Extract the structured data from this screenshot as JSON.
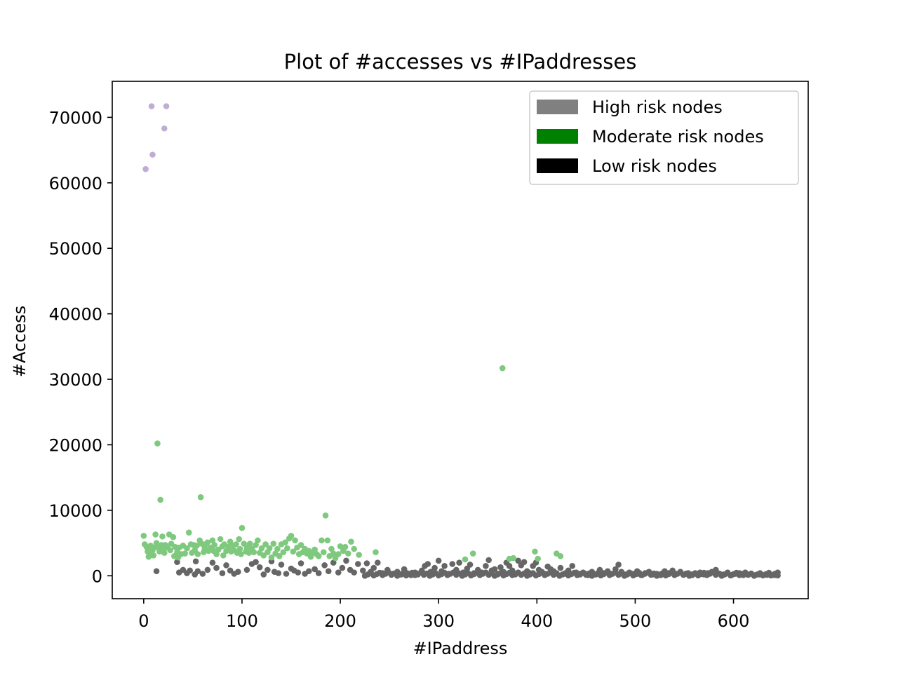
{
  "chart_data": {
    "type": "scatter",
    "title": "Plot of #accesses vs #IPaddresses",
    "xlabel": "#IPaddress",
    "ylabel": "#Access",
    "xlim": [
      -32,
      676
    ],
    "ylim": [
      -3500,
      75500
    ],
    "xticks": [
      0,
      100,
      200,
      300,
      400,
      500,
      600
    ],
    "yticks": [
      0,
      10000,
      20000,
      30000,
      40000,
      50000,
      60000,
      70000
    ],
    "grid": false,
    "legend": {
      "placement": "top-right",
      "entries": [
        {
          "label": "High risk nodes",
          "color": "#808080"
        },
        {
          "label": "Moderate risk nodes",
          "color": "#008000"
        },
        {
          "label": "Low risk nodes",
          "color": "#000000"
        }
      ]
    },
    "series": [
      {
        "color": "#beaed4",
        "points": [
          [
            2,
            62100
          ],
          [
            8,
            71700
          ],
          [
            9,
            64300
          ],
          [
            21,
            68300
          ],
          [
            23,
            71700
          ]
        ]
      },
      {
        "color": "#7fc97f",
        "points": [
          [
            0,
            6100
          ],
          [
            1,
            4800
          ],
          [
            3,
            4400
          ],
          [
            4,
            3700
          ],
          [
            5,
            2900
          ],
          [
            6,
            4100
          ],
          [
            7,
            4600
          ],
          [
            8,
            3200
          ],
          [
            9,
            3900
          ],
          [
            10,
            3100
          ],
          [
            11,
            4300
          ],
          [
            12,
            6300
          ],
          [
            13,
            5000
          ],
          [
            14,
            20200
          ],
          [
            15,
            4400
          ],
          [
            16,
            3700
          ],
          [
            17,
            11600
          ],
          [
            18,
            4700
          ],
          [
            19,
            6000
          ],
          [
            20,
            4100
          ],
          [
            21,
            3500
          ],
          [
            22,
            4700
          ],
          [
            24,
            4300
          ],
          [
            26,
            6300
          ],
          [
            27,
            3900
          ],
          [
            28,
            4900
          ],
          [
            30,
            5900
          ],
          [
            31,
            3000
          ],
          [
            32,
            4400
          ],
          [
            34,
            3600
          ],
          [
            35,
            2800
          ],
          [
            36,
            4300
          ],
          [
            38,
            3300
          ],
          [
            40,
            4600
          ],
          [
            42,
            3400
          ],
          [
            44,
            4200
          ],
          [
            46,
            6600
          ],
          [
            48,
            4800
          ],
          [
            49,
            3500
          ],
          [
            51,
            4700
          ],
          [
            52,
            3900
          ],
          [
            54,
            4600
          ],
          [
            55,
            3300
          ],
          [
            57,
            5400
          ],
          [
            58,
            12000
          ],
          [
            59,
            4900
          ],
          [
            61,
            3600
          ],
          [
            62,
            4200
          ],
          [
            63,
            4800
          ],
          [
            65,
            5100
          ],
          [
            66,
            3800
          ],
          [
            68,
            4300
          ],
          [
            70,
            5400
          ],
          [
            71,
            3800
          ],
          [
            72,
            4700
          ],
          [
            74,
            3300
          ],
          [
            76,
            4000
          ],
          [
            78,
            5600
          ],
          [
            80,
            4500
          ],
          [
            81,
            3100
          ],
          [
            82,
            4800
          ],
          [
            84,
            3800
          ],
          [
            86,
            4400
          ],
          [
            88,
            5200
          ],
          [
            89,
            3700
          ],
          [
            90,
            4600
          ],
          [
            92,
            3900
          ],
          [
            94,
            4800
          ],
          [
            95,
            3500
          ],
          [
            97,
            5600
          ],
          [
            98,
            4100
          ],
          [
            99,
            3300
          ],
          [
            100,
            7300
          ],
          [
            102,
            4900
          ],
          [
            104,
            3700
          ],
          [
            105,
            4300
          ],
          [
            107,
            3500
          ],
          [
            108,
            4900
          ],
          [
            110,
            4100
          ],
          [
            112,
            3600
          ],
          [
            114,
            4700
          ],
          [
            116,
            5400
          ],
          [
            118,
            3500
          ],
          [
            120,
            4200
          ],
          [
            122,
            3100
          ],
          [
            124,
            4800
          ],
          [
            126,
            3600
          ],
          [
            128,
            4200
          ],
          [
            130,
            2800
          ],
          [
            132,
            4900
          ],
          [
            134,
            3400
          ],
          [
            136,
            4100
          ],
          [
            138,
            3000
          ],
          [
            140,
            4800
          ],
          [
            142,
            3600
          ],
          [
            144,
            5100
          ],
          [
            146,
            4200
          ],
          [
            148,
            5700
          ],
          [
            150,
            6100
          ],
          [
            152,
            3700
          ],
          [
            154,
            5400
          ],
          [
            156,
            4300
          ],
          [
            158,
            3300
          ],
          [
            160,
            4700
          ],
          [
            162,
            3600
          ],
          [
            164,
            4100
          ],
          [
            166,
            3400
          ],
          [
            168,
            3800
          ],
          [
            170,
            2900
          ],
          [
            172,
            3500
          ],
          [
            174,
            4000
          ],
          [
            176,
            3300
          ],
          [
            178,
            3000
          ],
          [
            181,
            5400
          ],
          [
            183,
            3600
          ],
          [
            185,
            9200
          ],
          [
            187,
            5400
          ],
          [
            189,
            3000
          ],
          [
            191,
            4100
          ],
          [
            193,
            3400
          ],
          [
            195,
            2700
          ],
          [
            198,
            3300
          ],
          [
            200,
            4500
          ],
          [
            203,
            3800
          ],
          [
            205,
            4400
          ],
          [
            208,
            3400
          ],
          [
            211,
            5200
          ],
          [
            214,
            4100
          ],
          [
            219,
            3200
          ],
          [
            236,
            3600
          ],
          [
            327,
            2500
          ],
          [
            335,
            3400
          ],
          [
            365,
            31700
          ],
          [
            372,
            2600
          ],
          [
            376,
            2700
          ],
          [
            398,
            3700
          ],
          [
            401,
            2600
          ],
          [
            420,
            3400
          ],
          [
            424,
            3000
          ]
        ]
      },
      {
        "color": "#666666",
        "points": [
          [
            13,
            700
          ],
          [
            34,
            2100
          ],
          [
            36,
            500
          ],
          [
            40,
            900
          ],
          [
            44,
            400
          ],
          [
            47,
            800
          ],
          [
            52,
            200
          ],
          [
            53,
            2200
          ],
          [
            55,
            700
          ],
          [
            60,
            300
          ],
          [
            65,
            900
          ],
          [
            70,
            2000
          ],
          [
            74,
            1200
          ],
          [
            80,
            400
          ],
          [
            84,
            1600
          ],
          [
            88,
            800
          ],
          [
            92,
            300
          ],
          [
            96,
            600
          ],
          [
            105,
            900
          ],
          [
            110,
            1800
          ],
          [
            114,
            2100
          ],
          [
            118,
            1300
          ],
          [
            122,
            200
          ],
          [
            126,
            900
          ],
          [
            130,
            2200
          ],
          [
            133,
            600
          ],
          [
            137,
            400
          ],
          [
            140,
            1700
          ],
          [
            145,
            300
          ],
          [
            150,
            1100
          ],
          [
            153,
            800
          ],
          [
            157,
            500
          ],
          [
            160,
            1900
          ],
          [
            164,
            300
          ],
          [
            168,
            700
          ],
          [
            174,
            1000
          ],
          [
            178,
            400
          ],
          [
            184,
            1600
          ],
          [
            188,
            700
          ],
          [
            193,
            2000
          ],
          [
            198,
            500
          ],
          [
            202,
            1200
          ],
          [
            206,
            2300
          ],
          [
            210,
            900
          ],
          [
            214,
            500
          ],
          [
            218,
            1800
          ],
          [
            223,
            800
          ],
          [
            227,
            1900
          ],
          [
            231,
            600
          ],
          [
            234,
            1200
          ],
          [
            238,
            2000
          ],
          [
            243,
            400
          ],
          [
            248,
            900
          ],
          [
            253,
            300
          ],
          [
            258,
            600
          ],
          [
            262,
            200
          ],
          [
            265,
            1000
          ],
          [
            268,
            400
          ],
          [
            272,
            100
          ],
          [
            276,
            500
          ],
          [
            279,
            200
          ],
          [
            283,
            800
          ],
          [
            286,
            1500
          ],
          [
            289,
            1800
          ],
          [
            292,
            600
          ],
          [
            296,
            1200
          ],
          [
            300,
            2300
          ],
          [
            303,
            700
          ],
          [
            306,
            1500
          ],
          [
            310,
            300
          ],
          [
            314,
            1800
          ],
          [
            318,
            900
          ],
          [
            321,
            2000
          ],
          [
            325,
            500
          ],
          [
            329,
            1100
          ],
          [
            332,
            1700
          ],
          [
            336,
            400
          ],
          [
            340,
            900
          ],
          [
            344,
            500
          ],
          [
            348,
            1500
          ],
          [
            351,
            2400
          ],
          [
            354,
            800
          ],
          [
            357,
            1000
          ],
          [
            360,
            300
          ],
          [
            363,
            1300
          ],
          [
            366,
            600
          ],
          [
            369,
            2000
          ],
          [
            372,
            1500
          ],
          [
            375,
            800
          ],
          [
            378,
            200
          ],
          [
            381,
            2300
          ],
          [
            384,
            1600
          ],
          [
            387,
            2100
          ],
          [
            390,
            700
          ],
          [
            393,
            400
          ],
          [
            396,
            1500
          ],
          [
            399,
            2000
          ],
          [
            402,
            900
          ],
          [
            405,
            600
          ],
          [
            408,
            300
          ],
          [
            411,
            1400
          ],
          [
            414,
            1000
          ],
          [
            417,
            700
          ],
          [
            420,
            400
          ],
          [
            424,
            1200
          ],
          [
            428,
            300
          ],
          [
            432,
            800
          ],
          [
            436,
            1500
          ],
          [
            440,
            500
          ],
          [
            444,
            200
          ],
          [
            448,
            400
          ],
          [
            452,
            100
          ],
          [
            456,
            600
          ],
          [
            460,
            200
          ],
          [
            464,
            900
          ],
          [
            468,
            400
          ],
          [
            472,
            700
          ],
          [
            476,
            300
          ],
          [
            480,
            1000
          ],
          [
            483,
            1700
          ],
          [
            486,
            600
          ],
          [
            490,
            200
          ],
          [
            494,
            500
          ],
          [
            498,
            300
          ],
          [
            502,
            700
          ],
          [
            506,
            100
          ],
          [
            510,
            400
          ],
          [
            514,
            600
          ],
          [
            518,
            200
          ],
          [
            522,
            300
          ],
          [
            526,
            100
          ],
          [
            530,
            700
          ],
          [
            534,
            400
          ],
          [
            538,
            800
          ],
          [
            542,
            300
          ],
          [
            546,
            600
          ],
          [
            550,
            200
          ],
          [
            554,
            400
          ],
          [
            558,
            100
          ],
          [
            562,
            300
          ],
          [
            566,
            500
          ],
          [
            570,
            200
          ],
          [
            574,
            400
          ],
          [
            578,
            600
          ],
          [
            582,
            900
          ],
          [
            586,
            300
          ],
          [
            590,
            200
          ],
          [
            594,
            500
          ],
          [
            598,
            100
          ],
          [
            602,
            300
          ],
          [
            606,
            400
          ],
          [
            610,
            100
          ],
          [
            614,
            200
          ],
          [
            618,
            300
          ],
          [
            622,
            100
          ],
          [
            626,
            200
          ],
          [
            630,
            100
          ],
          [
            634,
            150
          ],
          [
            638,
            50
          ],
          [
            642,
            100
          ],
          [
            645,
            50
          ]
        ],
        "band": {
          "x_start": 225,
          "x_end": 645,
          "upper": 500,
          "step": 3
        }
      }
    ]
  }
}
